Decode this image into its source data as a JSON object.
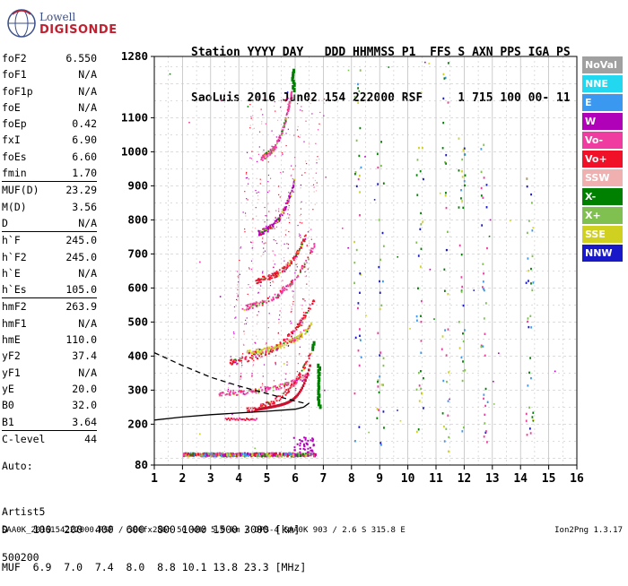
{
  "brand": {
    "line1": "Lowell",
    "line2": "DIGISONDE"
  },
  "header": {
    "labels": "Station YYYY DAY   DDD HHMMSS P1  FFS S AXN PPS IGA PS",
    "values": "SaoLuis 2016 Jun02 154 222000 RSF     1 715 100 00- 11"
  },
  "params": [
    {
      "k": "foF2",
      "v": "6.550"
    },
    {
      "k": "foF1",
      "v": "N/A"
    },
    {
      "k": "foF1p",
      "v": "N/A"
    },
    {
      "k": "foE",
      "v": "N/A"
    },
    {
      "k": "foEp",
      "v": "0.42"
    },
    {
      "k": "fxI",
      "v": "6.90"
    },
    {
      "k": "foEs",
      "v": "6.60"
    },
    {
      "k": "fmin",
      "v": "1.70"
    },
    {
      "k": "MUF(D)",
      "v": "23.29",
      "sep": true
    },
    {
      "k": "M(D)",
      "v": "3.56"
    },
    {
      "k": "D",
      "v": "N/A"
    },
    {
      "k": "h`F",
      "v": "245.0",
      "sep": true
    },
    {
      "k": "h`F2",
      "v": "245.0"
    },
    {
      "k": "h`E",
      "v": "N/A"
    },
    {
      "k": "h`Es",
      "v": "105.0"
    },
    {
      "k": "hmF2",
      "v": "263.9",
      "sep": true
    },
    {
      "k": "hmF1",
      "v": "N/A"
    },
    {
      "k": "hmE",
      "v": "110.0"
    },
    {
      "k": "yF2",
      "v": "37.4"
    },
    {
      "k": "yF1",
      "v": "N/A"
    },
    {
      "k": "yE",
      "v": "20.0"
    },
    {
      "k": "B0",
      "v": "32.0"
    },
    {
      "k": "B1",
      "v": "3.64"
    },
    {
      "k": "C-level",
      "v": "44",
      "sep": true
    }
  ],
  "artist": {
    "l1": "Auto:",
    "l2": "Artist5",
    "l3": "500200"
  },
  "legend": [
    {
      "label": "NoVal",
      "color": "#a0a0a0"
    },
    {
      "label": "NNE",
      "color": "#22d8f0"
    },
    {
      "label": "E",
      "color": "#3a98f0"
    },
    {
      "label": "W",
      "color": "#b000b8"
    },
    {
      "label": "Vo-",
      "color": "#f03ca0"
    },
    {
      "label": "Vo+",
      "color": "#f01028"
    },
    {
      "label": "SSW",
      "color": "#f0b0b0"
    },
    {
      "label": "X-",
      "color": "#008000"
    },
    {
      "label": "X+",
      "color": "#80c050"
    },
    {
      "label": "SSE",
      "color": "#d0d020"
    },
    {
      "label": "NNW",
      "color": "#1818c8"
    }
  ],
  "dmuf": {
    "d_line": "D    100  200  400  600  800 1000 1500 3000 [km]",
    "muf_line": "MUF  6.9  7.0  7.4  8.0  8.8 10.1 13.8 23.3 [MHz]"
  },
  "footer": "SAA0K_2016154222000.RSF / 300fx256h 50 kHz 5.0 km / DPS-4 SAA0K 903 / 2.6 S 315.8 E",
  "version": "Ion2Png 1.3.17",
  "chart_data": {
    "type": "scatter",
    "xlim": [
      1,
      16
    ],
    "ylim": [
      80,
      1280
    ],
    "x_ticks": [
      1,
      2,
      3,
      4,
      5,
      6,
      7,
      8,
      9,
      10,
      11,
      12,
      13,
      14,
      15,
      16
    ],
    "y_ticks": [
      80,
      200,
      300,
      400,
      500,
      600,
      700,
      800,
      900,
      1000,
      1100,
      1280
    ],
    "grid": true,
    "profile_solid": [
      [
        1,
        212
      ],
      [
        2,
        221
      ],
      [
        3,
        228
      ],
      [
        4,
        233
      ],
      [
        5,
        238
      ],
      [
        6,
        244
      ],
      [
        6.3,
        250
      ],
      [
        6.5,
        262
      ]
    ],
    "profile_dashed": [
      [
        1,
        410
      ],
      [
        2,
        372
      ],
      [
        3,
        338
      ],
      [
        4,
        312
      ],
      [
        5,
        290
      ],
      [
        5.5,
        279
      ],
      [
        6,
        268
      ],
      [
        6.3,
        262
      ]
    ],
    "traces": [
      {
        "f0": 4.3,
        "f1": 6.6,
        "h0": 240,
        "hc": 370,
        "mode": "Vo+"
      },
      {
        "f0": 3.3,
        "f1": 6.5,
        "h0": 290,
        "hc": 330,
        "mode": "Vo-"
      },
      {
        "f0": 3.7,
        "f1": 6.7,
        "h0": 380,
        "hc": 520,
        "mode": "Vo+"
      },
      {
        "f0": 4.3,
        "f1": 6.6,
        "h0": 410,
        "hc": 470,
        "mode": "SSE"
      },
      {
        "f0": 4.1,
        "f1": 6.7,
        "h0": 540,
        "hc": 680,
        "mode": "Vo-"
      },
      {
        "f0": 4.6,
        "f1": 6.4,
        "h0": 620,
        "hc": 720,
        "mode": "Vo+"
      },
      {
        "f0": 4.7,
        "f1": 6.0,
        "h0": 760,
        "hc": 880,
        "mode": "W"
      },
      {
        "f0": 4.8,
        "f1": 5.9,
        "h0": 980,
        "hc": 1130,
        "mode": "Vo-"
      }
    ],
    "extra_x_traces": [
      {
        "f": 6.8,
        "h0": 250,
        "h1": 370,
        "mode": "X-"
      },
      {
        "f": 6.6,
        "h0": 420,
        "h1": 440,
        "mode": "X-"
      },
      {
        "f": 5.9,
        "h0": 1180,
        "h1": 1240,
        "mode": "X-"
      }
    ],
    "es_band": {
      "h": 110,
      "f0": 2.0,
      "f1": 6.7
    }
  }
}
